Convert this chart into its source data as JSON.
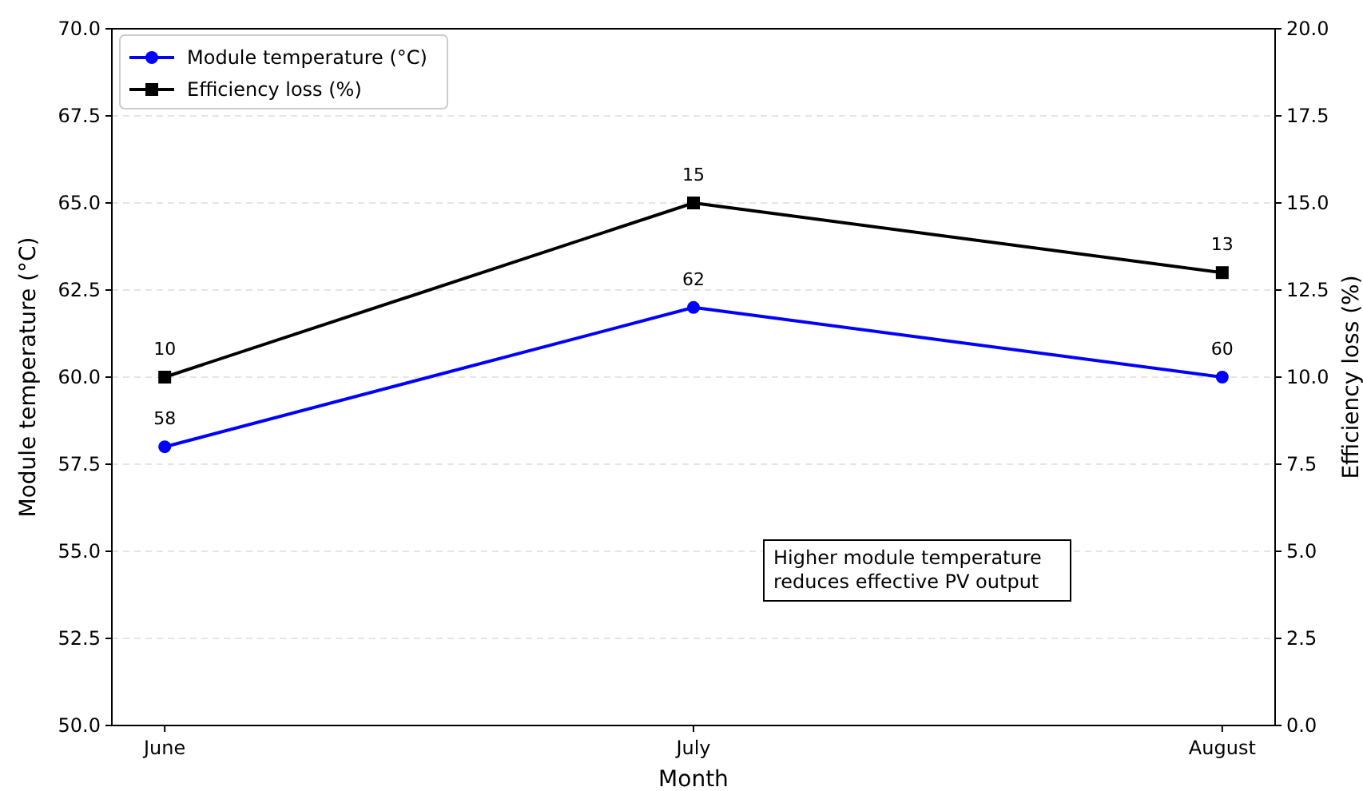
{
  "chart_data": {
    "type": "line",
    "xlabel": "Month",
    "ylabel": "Module temperature (°C)",
    "y2label": "Efficiency loss (%)",
    "categories": [
      "June",
      "July",
      "August"
    ],
    "series": [
      {
        "name": "Module temperature (°C)",
        "color": "#0000ff",
        "values": [
          58,
          62,
          60
        ],
        "marker": "circle"
      },
      {
        "name": "Efficiency loss (%)",
        "color": "#000000",
        "values": [
          10,
          15,
          13
        ],
        "marker": "square",
        "axis": "y2"
      }
    ],
    "ylim": [
      50,
      70
    ],
    "yticks": [
      {
        "value": 50,
        "label": "50.0"
      },
      {
        "value": 52.5,
        "label": "52.5"
      },
      {
        "value": 55,
        "label": "55.0"
      },
      {
        "value": 57.5,
        "label": "57.5"
      },
      {
        "value": 60,
        "label": "60.0"
      },
      {
        "value": 62.5,
        "label": "62.5"
      },
      {
        "value": 65,
        "label": "65.0"
      },
      {
        "value": 67.5,
        "label": "67.5"
      },
      {
        "value": 70,
        "label": "70.0"
      }
    ],
    "y2lim": [
      0,
      20
    ],
    "y2ticks": [
      {
        "value": 0,
        "label": "0.0"
      },
      {
        "value": 2.5,
        "label": "2.5"
      },
      {
        "value": 5,
        "label": "5.0"
      },
      {
        "value": 7.5,
        "label": "7.5"
      },
      {
        "value": 10,
        "label": "10.0"
      },
      {
        "value": 12.5,
        "label": "12.5"
      },
      {
        "value": 15,
        "label": "15.0"
      },
      {
        "value": 17.5,
        "label": "17.5"
      },
      {
        "value": 20,
        "label": "20.0"
      }
    ],
    "grid": "y",
    "legend": "top left",
    "data_labels": true,
    "line_style": "solid",
    "annotations": [
      "Higher module temperature\nreduces effective PV output"
    ]
  }
}
